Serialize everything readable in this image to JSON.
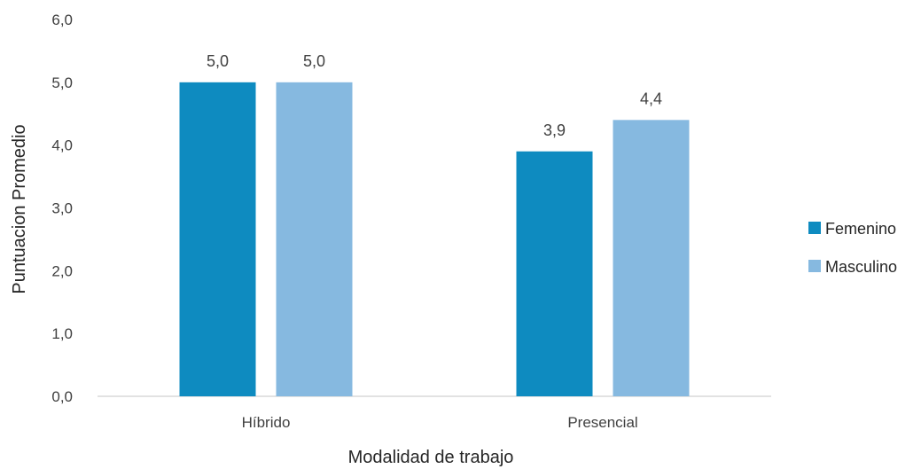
{
  "chart_data": {
    "type": "bar",
    "title": "",
    "xlabel": "Modalidad de trabajo",
    "ylabel": "Puntuacion Promedio",
    "categories": [
      "Híbrido",
      "Presencial"
    ],
    "series": [
      {
        "name": "Femenino",
        "values": [
          5.0,
          3.9
        ],
        "labels": [
          "5,0",
          "3,9"
        ],
        "color": "#0E8BC0"
      },
      {
        "name": "Masculino",
        "values": [
          5.0,
          4.4
        ],
        "labels": [
          "5,0",
          "4,4"
        ],
        "color": "#86B9E0"
      }
    ],
    "ylim": [
      0,
      6
    ],
    "yticks": [
      0,
      1,
      2,
      3,
      4,
      5,
      6
    ],
    "ytick_labels": [
      "0,0",
      "1,0",
      "2,0",
      "3,0",
      "4,0",
      "5,0",
      "6,0"
    ],
    "grid": false,
    "legend_position": "right"
  },
  "colors": {
    "axis_line": "#D9D9D9"
  }
}
